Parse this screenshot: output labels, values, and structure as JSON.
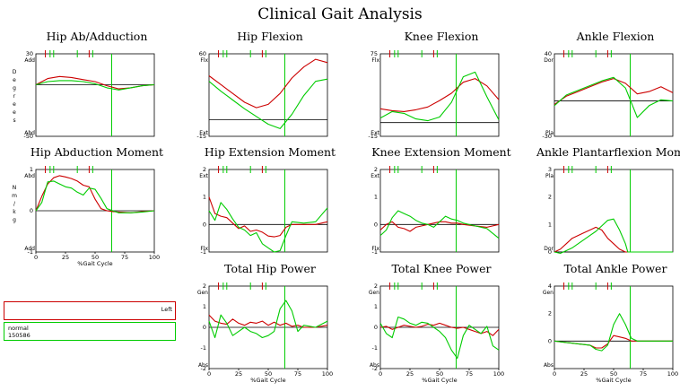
{
  "title": "Clinical Gait Analysis",
  "colors": {
    "left": "#cc0000",
    "normal": "#00cc00",
    "axis": "#000000"
  },
  "legend": {
    "left_label": "Left",
    "normal_label": "normal",
    "normal_id": "150586"
  },
  "chart_data": [
    {
      "id": "hip_abadd",
      "title": "Hip Ab/Adduction",
      "type": "line",
      "ylim": [
        -50,
        30
      ],
      "ticks_y": [
        30,
        -50
      ],
      "ylabel_top": "Add",
      "ylabel_bottom": "Abd",
      "vertical_label": "Degrees",
      "zero": 0,
      "toe_off": 64,
      "xtick_labels": false,
      "series": [
        {
          "name": "Left",
          "x": [
            0,
            10,
            20,
            30,
            40,
            50,
            60,
            70,
            80,
            90,
            100
          ],
          "y": [
            0,
            6,
            8,
            7,
            5,
            3,
            -1,
            -4,
            -3,
            -1,
            0
          ]
        },
        {
          "name": "normal",
          "x": [
            0,
            10,
            20,
            30,
            40,
            50,
            60,
            70,
            80,
            90,
            100
          ],
          "y": [
            0,
            3,
            4,
            4,
            3,
            1,
            -3,
            -5,
            -3,
            -1,
            0
          ]
        }
      ]
    },
    {
      "id": "hip_flex",
      "title": "Hip Flexion",
      "type": "line",
      "ylim": [
        -15,
        60
      ],
      "ticks_y": [
        60,
        -15
      ],
      "ylabel_top": "Flx",
      "ylabel_bottom": "Ext",
      "vertical_label": "",
      "zero": 0,
      "toe_off": 64,
      "xtick_labels": false,
      "series": [
        {
          "name": "Left",
          "x": [
            0,
            10,
            20,
            30,
            40,
            50,
            60,
            70,
            80,
            90,
            100
          ],
          "y": [
            40,
            32,
            24,
            16,
            11,
            14,
            24,
            38,
            48,
            55,
            52
          ]
        },
        {
          "name": "normal",
          "x": [
            0,
            10,
            20,
            30,
            40,
            50,
            60,
            70,
            80,
            90,
            100
          ],
          "y": [
            35,
            26,
            18,
            10,
            3,
            -4,
            -8,
            5,
            22,
            35,
            37
          ]
        }
      ]
    },
    {
      "id": "knee_flex",
      "title": "Knee Flexion",
      "type": "line",
      "ylim": [
        -15,
        75
      ],
      "ticks_y": [
        75,
        -15
      ],
      "ylabel_top": "Flx",
      "ylabel_bottom": "Ext",
      "vertical_label": "",
      "zero": 0,
      "toe_off": 64,
      "xtick_labels": false,
      "series": [
        {
          "name": "Left",
          "x": [
            0,
            10,
            20,
            30,
            40,
            50,
            60,
            70,
            80,
            90,
            100
          ],
          "y": [
            15,
            13,
            12,
            14,
            17,
            24,
            32,
            44,
            48,
            40,
            25
          ]
        },
        {
          "name": "normal",
          "x": [
            0,
            10,
            20,
            30,
            40,
            50,
            60,
            70,
            80,
            90,
            100
          ],
          "y": [
            5,
            12,
            10,
            4,
            2,
            6,
            22,
            50,
            55,
            28,
            3
          ]
        }
      ]
    },
    {
      "id": "ankle_flex",
      "title": "Ankle Flexion",
      "type": "line",
      "ylim": [
        -30,
        40
      ],
      "ticks_y": [
        40,
        -30
      ],
      "ylabel_top": "Dor",
      "ylabel_bottom": "Pla",
      "vertical_label": "",
      "zero": 0,
      "toe_off": 64,
      "xtick_labels": false,
      "series": [
        {
          "name": "Left",
          "x": [
            0,
            10,
            20,
            30,
            40,
            50,
            60,
            70,
            80,
            90,
            100
          ],
          "y": [
            -3,
            4,
            8,
            12,
            16,
            19,
            15,
            6,
            8,
            12,
            7
          ]
        },
        {
          "name": "normal",
          "x": [
            0,
            10,
            20,
            30,
            40,
            50,
            60,
            70,
            80,
            90,
            100
          ],
          "y": [
            -4,
            5,
            9,
            13,
            17,
            20,
            11,
            -14,
            -4,
            1,
            0
          ]
        }
      ]
    },
    {
      "id": "hip_abd_moment",
      "title": "Hip Abduction Moment",
      "type": "line",
      "ylim": [
        -1,
        1
      ],
      "ticks_y": [
        1,
        0,
        -1
      ],
      "ylabel_top": "Abd",
      "ylabel_bottom": "Add",
      "vertical_label": "Nm/kg",
      "zero": 0,
      "toe_off": 64,
      "xtick_labels": true,
      "xlabel": "%Gait Cycle",
      "xticks": [
        0,
        25,
        50,
        75,
        100
      ],
      "series": [
        {
          "name": "Left",
          "x": [
            0,
            5,
            10,
            15,
            20,
            25,
            30,
            35,
            40,
            45,
            50,
            55,
            60,
            65,
            70,
            80,
            90,
            100
          ],
          "y": [
            0,
            0.35,
            0.65,
            0.8,
            0.85,
            0.82,
            0.78,
            0.72,
            0.62,
            0.58,
            0.28,
            0.05,
            0,
            -0.02,
            -0.03,
            -0.05,
            -0.02,
            0
          ]
        },
        {
          "name": "normal",
          "x": [
            0,
            5,
            10,
            15,
            20,
            25,
            30,
            35,
            40,
            45,
            50,
            55,
            60,
            65,
            70,
            80,
            90,
            100
          ],
          "y": [
            0,
            0.2,
            0.7,
            0.72,
            0.65,
            0.58,
            0.55,
            0.45,
            0.38,
            0.55,
            0.52,
            0.3,
            0.05,
            0,
            -0.05,
            -0.05,
            -0.03,
            0
          ]
        }
      ]
    },
    {
      "id": "hip_ext_moment",
      "title": "Hip Extension Moment",
      "type": "line",
      "ylim": [
        -1,
        2
      ],
      "ticks_y": [
        2,
        1,
        0,
        -1
      ],
      "ylabel_top": "Ext",
      "ylabel_bottom": "Flx",
      "vertical_label": "",
      "zero": 0,
      "toe_off": 64,
      "xtick_labels": false,
      "series": [
        {
          "name": "Left",
          "x": [
            0,
            5,
            10,
            15,
            20,
            25,
            30,
            35,
            40,
            45,
            50,
            55,
            60,
            65,
            70,
            80,
            90,
            100
          ],
          "y": [
            1,
            0.4,
            0.3,
            0.25,
            0.05,
            -0.15,
            -0.05,
            -0.25,
            -0.2,
            -0.28,
            -0.42,
            -0.45,
            -0.4,
            -0.1,
            0,
            0,
            0,
            0.1
          ]
        },
        {
          "name": "normal",
          "x": [
            0,
            5,
            10,
            15,
            20,
            25,
            30,
            35,
            40,
            45,
            50,
            55,
            60,
            65,
            70,
            80,
            90,
            100
          ],
          "y": [
            0.5,
            0.15,
            0.8,
            0.55,
            0.2,
            -0.1,
            -0.2,
            -0.4,
            -0.3,
            -0.7,
            -0.85,
            -1,
            -0.95,
            -0.4,
            0.1,
            0.05,
            0.1,
            0.6
          ]
        }
      ]
    },
    {
      "id": "knee_ext_moment",
      "title": "Knee Extension Moment",
      "type": "line",
      "ylim": [
        -1,
        2
      ],
      "ticks_y": [
        2,
        1,
        0,
        -1
      ],
      "ylabel_top": "Ext",
      "ylabel_bottom": "Flx",
      "vertical_label": "",
      "zero": 0,
      "toe_off": 64,
      "xtick_labels": false,
      "series": [
        {
          "name": "Left",
          "x": [
            0,
            5,
            10,
            15,
            20,
            25,
            30,
            35,
            40,
            45,
            50,
            55,
            60,
            65,
            70,
            80,
            90,
            100
          ],
          "y": [
            -0.2,
            0,
            0.1,
            -0.1,
            -0.15,
            -0.25,
            -0.1,
            -0.05,
            0,
            0.05,
            0.1,
            0.1,
            0.05,
            0.05,
            0,
            -0.05,
            -0.1,
            0
          ]
        },
        {
          "name": "normal",
          "x": [
            0,
            5,
            10,
            15,
            20,
            25,
            30,
            35,
            40,
            45,
            50,
            55,
            60,
            65,
            70,
            80,
            90,
            100
          ],
          "y": [
            -0.4,
            -0.2,
            0.25,
            0.5,
            0.4,
            0.3,
            0.15,
            0.05,
            0,
            -0.1,
            0.1,
            0.3,
            0.2,
            0.15,
            0.05,
            -0.05,
            -0.15,
            -0.5
          ]
        }
      ]
    },
    {
      "id": "ankle_pf_moment",
      "title": "Ankle Plantarflexion Moment",
      "type": "line",
      "ylim": [
        0,
        3
      ],
      "ticks_y": [
        3,
        2,
        1,
        0
      ],
      "ylabel_top": "Pla",
      "ylabel_bottom": "Dor",
      "vertical_label": "",
      "zero": 0,
      "toe_off": 64,
      "xtick_labels": false,
      "series": [
        {
          "name": "Left",
          "x": [
            0,
            5,
            10,
            15,
            20,
            25,
            30,
            35,
            40,
            45,
            50,
            55,
            60,
            62,
            100
          ],
          "y": [
            0,
            0.1,
            0.3,
            0.5,
            0.6,
            0.7,
            0.8,
            0.9,
            0.8,
            0.5,
            0.3,
            0.1,
            0,
            0,
            0
          ]
        },
        {
          "name": "normal",
          "x": [
            0,
            5,
            10,
            15,
            20,
            25,
            30,
            35,
            40,
            45,
            50,
            55,
            60,
            62,
            100
          ],
          "y": [
            0,
            -0.05,
            0.05,
            0.15,
            0.3,
            0.45,
            0.6,
            0.75,
            0.95,
            1.15,
            1.2,
            0.8,
            0.3,
            0,
            0
          ]
        }
      ]
    },
    {
      "id": "total_hip_power",
      "title": "Total Hip Power",
      "type": "line",
      "ylim": [
        -2,
        2
      ],
      "ticks_y": [
        2,
        1,
        0,
        -1,
        -2
      ],
      "ylabel_top": "Gen",
      "ylabel_bottom": "Abs",
      "vertical_label": "",
      "zero": 0,
      "toe_off": 64,
      "xtick_labels": true,
      "xlabel": "%Gait Cycle",
      "xticks": [
        0,
        25,
        50,
        75,
        100
      ],
      "series": [
        {
          "name": "Left",
          "x": [
            0,
            5,
            10,
            15,
            20,
            25,
            30,
            35,
            40,
            45,
            50,
            55,
            60,
            65,
            70,
            75,
            80,
            90,
            100
          ],
          "y": [
            0.6,
            0.3,
            0.2,
            0.15,
            0.4,
            0.2,
            0.1,
            0.25,
            0.2,
            0.3,
            0.1,
            0.25,
            0.1,
            0.2,
            0.05,
            0.1,
            0,
            0,
            0.1
          ]
        },
        {
          "name": "normal",
          "x": [
            0,
            5,
            10,
            15,
            20,
            25,
            30,
            35,
            40,
            45,
            50,
            55,
            60,
            65,
            70,
            75,
            80,
            90,
            100
          ],
          "y": [
            0.3,
            -0.5,
            0.6,
            0.2,
            -0.4,
            -0.2,
            0,
            -0.2,
            -0.3,
            -0.5,
            -0.4,
            -0.2,
            0.9,
            1.3,
            0.8,
            -0.2,
            0.1,
            0,
            0.3
          ]
        }
      ]
    },
    {
      "id": "total_knee_power",
      "title": "Total Knee Power",
      "type": "line",
      "ylim": [
        -2,
        2
      ],
      "ticks_y": [
        2,
        1,
        0,
        -1,
        -2
      ],
      "ylabel_top": "Gen",
      "ylabel_bottom": "Abs",
      "vertical_label": "",
      "zero": 0,
      "toe_off": 64,
      "xtick_labels": true,
      "xlabel": "%Gait Cycle",
      "xticks": [
        0,
        25,
        50,
        75,
        100
      ],
      "series": [
        {
          "name": "Left",
          "x": [
            0,
            5,
            10,
            15,
            20,
            25,
            30,
            35,
            40,
            45,
            50,
            55,
            60,
            65,
            70,
            75,
            80,
            85,
            90,
            95,
            100
          ],
          "y": [
            0,
            0.05,
            -0.1,
            0,
            0.1,
            0.05,
            0,
            0.05,
            0.15,
            0.1,
            0.2,
            0.1,
            0,
            -0.05,
            0,
            -0.1,
            -0.2,
            -0.3,
            -0.2,
            -0.4,
            -0.1
          ]
        },
        {
          "name": "normal",
          "x": [
            0,
            5,
            10,
            15,
            20,
            25,
            30,
            35,
            40,
            45,
            50,
            55,
            60,
            65,
            70,
            75,
            80,
            85,
            90,
            95,
            100
          ],
          "y": [
            0.2,
            -0.3,
            -0.5,
            0.5,
            0.4,
            0.2,
            0.1,
            0.25,
            0.2,
            0,
            -0.2,
            -0.5,
            -1.1,
            -1.5,
            -0.4,
            0.1,
            -0.1,
            -0.3,
            0.05,
            -0.9,
            -1.1
          ]
        }
      ]
    },
    {
      "id": "total_ankle_power",
      "title": "Total Ankle Power",
      "type": "line",
      "ylim": [
        -2,
        4
      ],
      "ticks_y": [
        4,
        2,
        0
      ],
      "ylabel_top": "Gen",
      "ylabel_bottom": "Abs",
      "vertical_label": "",
      "zero": 0,
      "toe_off": 64,
      "xtick_labels": true,
      "xlabel": "%Gait Cycle",
      "xticks": [
        0,
        25,
        50,
        75,
        100
      ],
      "series": [
        {
          "name": "Left",
          "x": [
            0,
            10,
            20,
            30,
            35,
            40,
            45,
            50,
            55,
            60,
            65,
            70,
            100
          ],
          "y": [
            0,
            -0.1,
            -0.2,
            -0.3,
            -0.5,
            -0.5,
            -0.2,
            0.4,
            0.3,
            0.2,
            0,
            0,
            0
          ]
        },
        {
          "name": "normal",
          "x": [
            0,
            10,
            20,
            30,
            35,
            40,
            45,
            50,
            55,
            60,
            65,
            70,
            100
          ],
          "y": [
            0,
            -0.1,
            -0.2,
            -0.3,
            -0.6,
            -0.7,
            -0.3,
            1.2,
            2.0,
            1.2,
            0.2,
            0,
            0
          ]
        }
      ]
    }
  ]
}
